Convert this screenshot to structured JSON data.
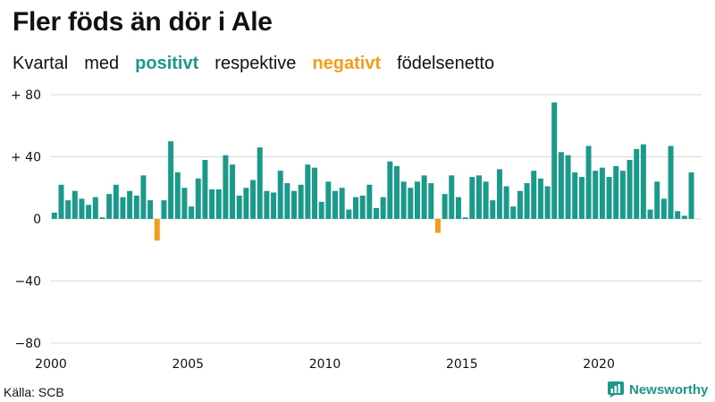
{
  "title": "Fler föds än dör i Ale",
  "subtitle": {
    "part1": "Kvartal",
    "part2": "med",
    "positive_word": "positivt",
    "part3": "respektive",
    "negative_word": "negativt",
    "part4": "födelsenetto"
  },
  "colors": {
    "positive": "#1a9a8a",
    "negative": "#f59c1a",
    "grid": "#d9d9d9"
  },
  "source": "Källa: SCB",
  "brand": {
    "name": "Newsworthy",
    "icon": "newsworthy-logo-icon"
  },
  "chart_data": {
    "type": "bar",
    "xlim": [
      2000,
      2023.75
    ],
    "ylim": [
      -80,
      80
    ],
    "yticks": [
      80,
      40,
      0,
      -40,
      -80
    ],
    "ytick_labels": [
      "+ 80",
      "+ 40",
      "0",
      "−40",
      "−80"
    ],
    "xticks": [
      2000,
      2005,
      2010,
      2015,
      2020
    ],
    "xtick_labels": [
      "2000",
      "2005",
      "2010",
      "2015",
      "2020"
    ],
    "grid": true,
    "legend": "none",
    "series": [
      {
        "start_year": 2000,
        "start_quarter": 1,
        "values": [
          4,
          22,
          12,
          18,
          13,
          9,
          14,
          1,
          16,
          22,
          14,
          18,
          15,
          28,
          12,
          -14,
          12,
          50,
          30,
          20,
          8,
          26,
          38,
          19,
          19,
          41,
          35,
          15,
          20,
          25,
          46,
          18,
          17,
          31,
          23,
          18,
          22,
          35,
          33,
          11,
          24,
          18,
          20,
          6,
          14,
          15,
          22,
          7,
          14,
          37,
          34,
          24,
          20,
          24,
          28,
          23,
          -9,
          16,
          28,
          14,
          1,
          27,
          28,
          24,
          12,
          32,
          21,
          8,
          18,
          23,
          31,
          26,
          21,
          75,
          43,
          41,
          30,
          27,
          47,
          31,
          33,
          27,
          34,
          31,
          38,
          45,
          48,
          6,
          24,
          13,
          47,
          5,
          2,
          30
        ]
      }
    ]
  }
}
